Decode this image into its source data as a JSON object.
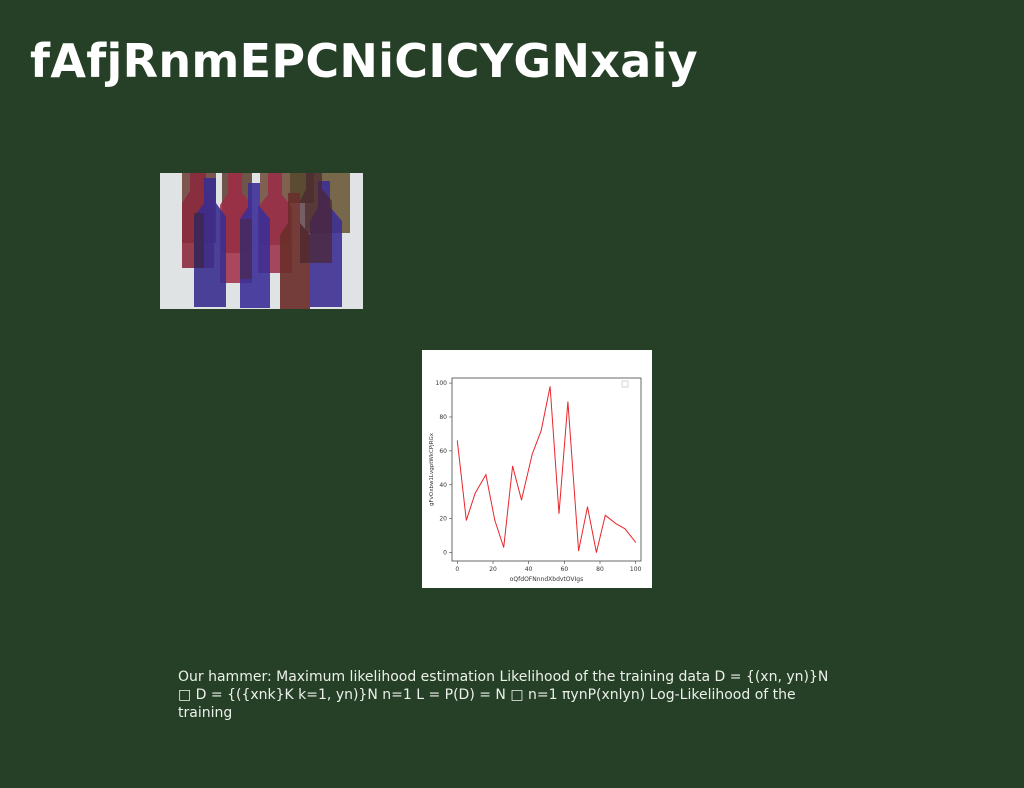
{
  "slide": {
    "title": "fAfjRnmEPCNiCICYGNxaiy",
    "body": "Our hammer: Maximum likelihood estimation Likelihood of the training data D = {(xn, yn)}N □ D = {({xnk}K k=1, yn)}N n=1 L = P(D) = N □ n=1 πynP(xnlyn) Log-Likelihood of the training"
  },
  "photo": {
    "subject": "wine-bottles-painting"
  },
  "colors": {
    "background": "#264027",
    "line": "#e8262b"
  },
  "chart_data": {
    "type": "line",
    "xlabel": "oQfdOFNnndXbdvtOVIgs",
    "ylabel": "gFvOxbw1LvgptWkCPjRGx",
    "xlim": [
      -3,
      103
    ],
    "ylim": [
      -5,
      103
    ],
    "xticks": [
      "0",
      "20",
      "40",
      "60",
      "80",
      "100"
    ],
    "yticks": [
      "0",
      "20",
      "40",
      "60",
      "80",
      "100"
    ],
    "x": [
      0,
      5,
      10,
      16,
      21,
      26,
      31,
      36,
      42,
      47,
      52,
      57,
      62,
      68,
      73,
      78,
      83,
      89,
      94,
      100
    ],
    "y": [
      66,
      19,
      35,
      46,
      19,
      3,
      51,
      31,
      58,
      72,
      98,
      23,
      89,
      1,
      27,
      0,
      22,
      17,
      14,
      6
    ],
    "legend": "top-right",
    "grid": false
  }
}
